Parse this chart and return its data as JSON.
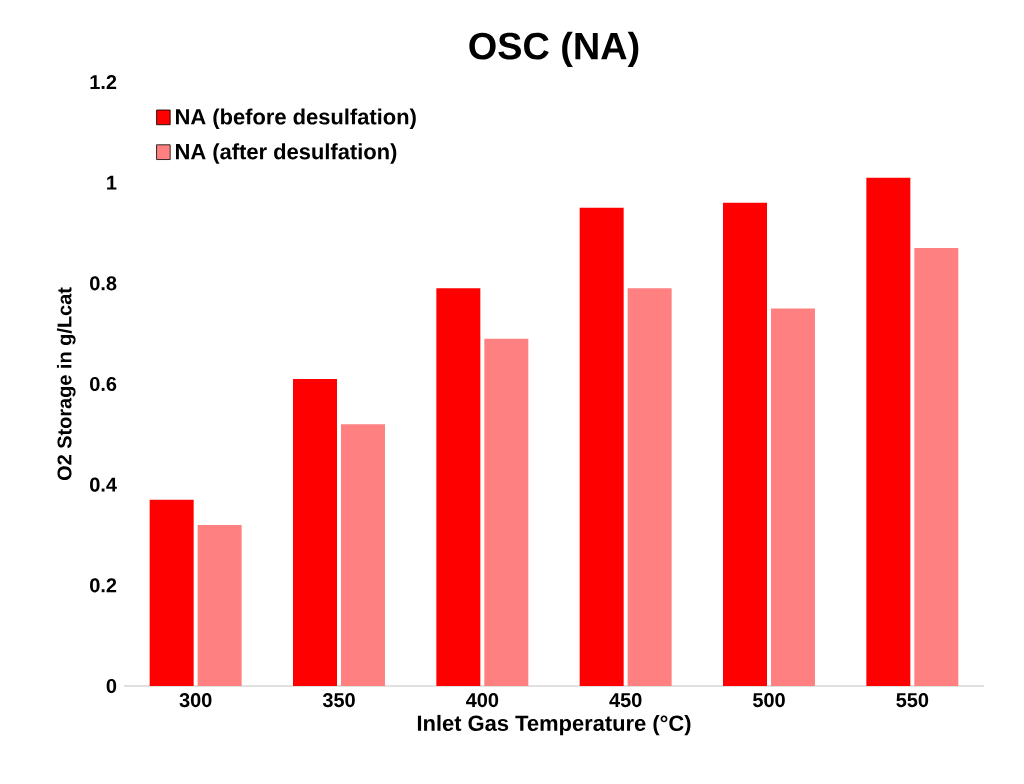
{
  "chart_data": {
    "type": "bar",
    "title": "OSC (NA)",
    "xlabel": "Inlet Gas Temperature (°C)",
    "ylabel": "O2 Storage in g/Lcat",
    "categories": [
      "300",
      "350",
      "400",
      "450",
      "500",
      "550"
    ],
    "series": [
      {
        "name": "NA (before desulfation)",
        "color": "#ff0000",
        "values": [
          0.37,
          0.61,
          0.79,
          0.95,
          0.96,
          1.01
        ]
      },
      {
        "name": "NA (after desulfation)",
        "color": "#ff8080",
        "values": [
          0.32,
          0.52,
          0.69,
          0.79,
          0.75,
          0.87
        ]
      }
    ],
    "ylim": [
      0,
      1.2
    ],
    "yticks": [
      0,
      0.2,
      0.4,
      0.6,
      0.8,
      1,
      1.2
    ],
    "legend": "top left"
  }
}
